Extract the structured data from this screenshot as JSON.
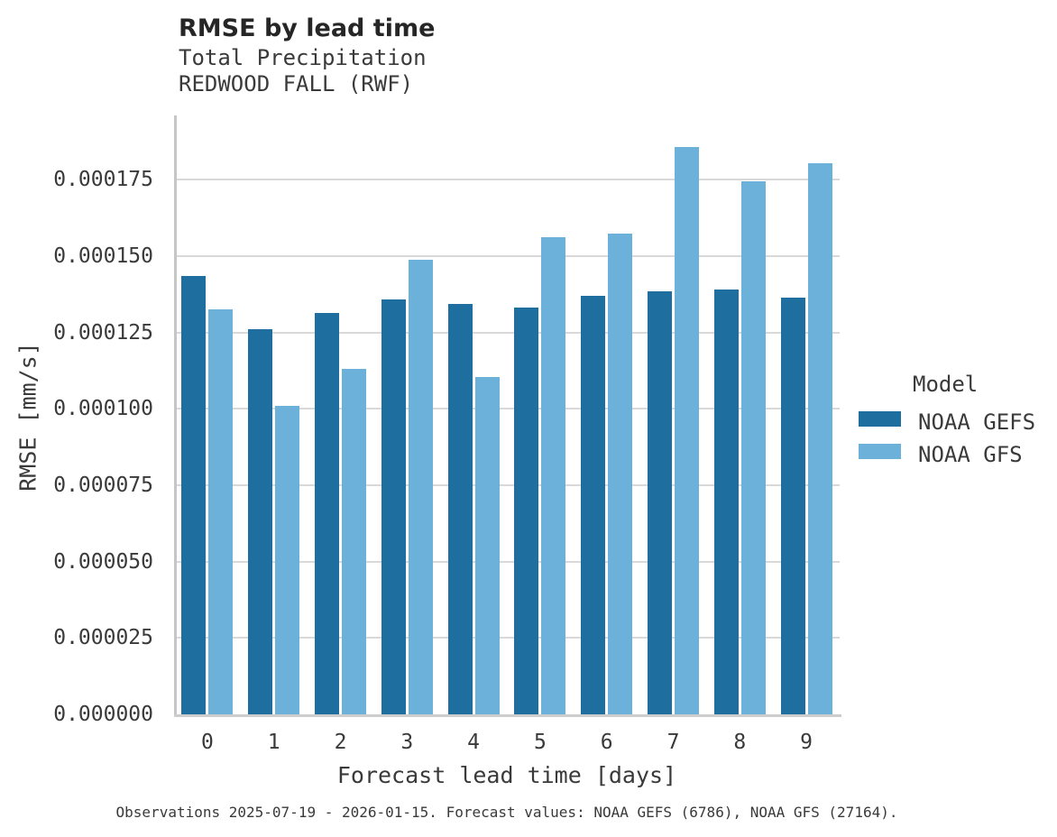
{
  "header": {
    "title": "RMSE by lead time",
    "subtitle_line1": "Total Precipitation",
    "subtitle_line2": "REDWOOD FALL (RWF)"
  },
  "caption": "Observations 2025-07-19 - 2026-01-15. Forecast values: NOAA GEFS (6786), NOAA GFS (27164).",
  "legend": {
    "title": "Model",
    "entries": [
      {
        "label": "NOAA GEFS",
        "color": "#1e6f9f"
      },
      {
        "label": "NOAA GFS",
        "color": "#6bb1d9"
      }
    ]
  },
  "colors": {
    "gefs_bar": "#1e6f9f",
    "gfs_bar": "#6bb1d9",
    "gridline": "#d9d9d9",
    "spine": "#c6c6c6",
    "text": "#3a3a3a",
    "title_text": "#262626"
  },
  "chart_data": {
    "type": "bar",
    "title": "RMSE by lead time",
    "subtitle": [
      "Total Precipitation",
      "REDWOOD FALL (RWF)"
    ],
    "xlabel": "Forecast lead time [days]",
    "ylabel": "RMSE [mm/s]",
    "categories": [
      "0",
      "1",
      "2",
      "3",
      "4",
      "5",
      "6",
      "7",
      "8",
      "9"
    ],
    "series": [
      {
        "name": "NOAA GEFS",
        "color": "#1e6f9f",
        "values": [
          0.0001435,
          0.0001261,
          0.0001313,
          0.0001358,
          0.0001344,
          0.000133,
          0.000137,
          0.0001384,
          0.0001391,
          0.0001363
        ]
      },
      {
        "name": "NOAA GFS",
        "color": "#6bb1d9",
        "values": [
          0.0001325,
          0.0001009,
          0.000113,
          0.0001488,
          0.0001105,
          0.0001561,
          0.0001573,
          0.0001858,
          0.0001745,
          0.0001805
        ]
      }
    ],
    "ylim": [
      0,
      0.000196
    ],
    "yticks": [
      0,
      2.5e-05,
      5e-05,
      7.5e-05,
      0.0001,
      0.000125,
      0.00015,
      0.000175
    ],
    "ytick_format_decimals": 6,
    "grid": true,
    "legend_title": "Model",
    "legend_position": "right"
  }
}
